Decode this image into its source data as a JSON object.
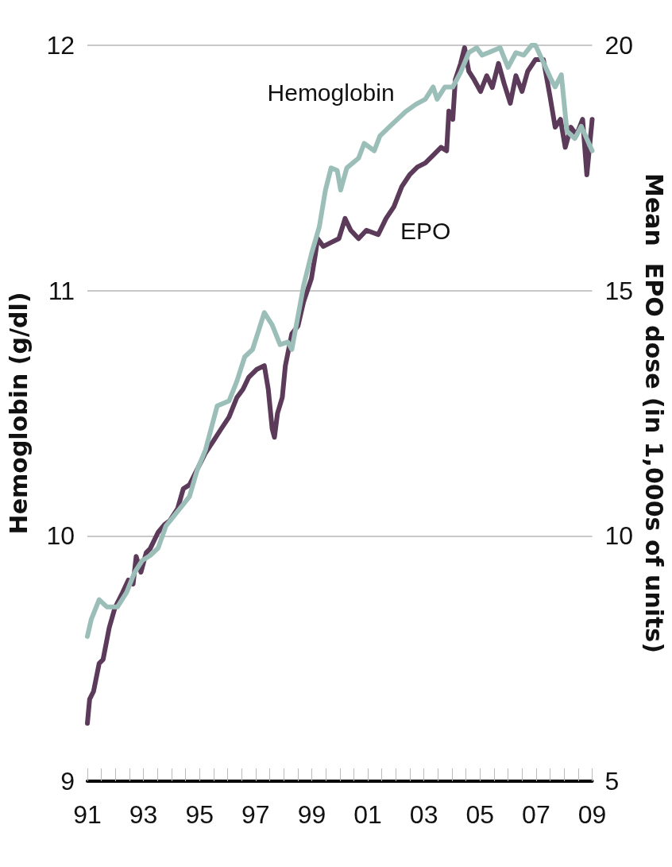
{
  "chart_data": {
    "type": "line",
    "ylabel": "Hemoglobin (g/dl)",
    "y2label": "Mean  EPO dose (in 1,000s of units)",
    "xlim": [
      1991,
      2009
    ],
    "xticks": [
      {
        "value": 1991,
        "label": "91"
      },
      {
        "value": 1991.5,
        "label": null
      },
      {
        "value": 1992,
        "label": null
      },
      {
        "value": 1992.5,
        "label": null
      },
      {
        "value": 1993,
        "label": "93"
      },
      {
        "value": 1993.5,
        "label": null
      },
      {
        "value": 1994,
        "label": null
      },
      {
        "value": 1994.5,
        "label": null
      },
      {
        "value": 1995,
        "label": "95"
      },
      {
        "value": 1995.5,
        "label": null
      },
      {
        "value": 1996,
        "label": null
      },
      {
        "value": 1996.5,
        "label": null
      },
      {
        "value": 1997,
        "label": "97"
      },
      {
        "value": 1997.5,
        "label": null
      },
      {
        "value": 1998,
        "label": null
      },
      {
        "value": 1998.5,
        "label": null
      },
      {
        "value": 1999,
        "label": "99"
      },
      {
        "value": 1999.5,
        "label": null
      },
      {
        "value": 2000,
        "label": null
      },
      {
        "value": 2000.5,
        "label": null
      },
      {
        "value": 2001,
        "label": "01"
      },
      {
        "value": 2001.5,
        "label": null
      },
      {
        "value": 2002,
        "label": null
      },
      {
        "value": 2002.5,
        "label": null
      },
      {
        "value": 2003,
        "label": "03"
      },
      {
        "value": 2003.5,
        "label": null
      },
      {
        "value": 2004,
        "label": null
      },
      {
        "value": 2004.5,
        "label": null
      },
      {
        "value": 2005,
        "label": "05"
      },
      {
        "value": 2005.5,
        "label": null
      },
      {
        "value": 2006,
        "label": null
      },
      {
        "value": 2006.5,
        "label": null
      },
      {
        "value": 2007,
        "label": "07"
      },
      {
        "value": 2007.5,
        "label": null
      },
      {
        "value": 2008,
        "label": null
      },
      {
        "value": 2008.5,
        "label": null
      },
      {
        "value": 2009,
        "label": "09"
      }
    ],
    "ylim": [
      9,
      12
    ],
    "yticks": [
      9,
      10,
      11,
      12
    ],
    "y2lim": [
      5,
      20
    ],
    "y2ticks": [
      5,
      10,
      15,
      20
    ],
    "grid": "y",
    "legend": false,
    "marker": "none",
    "line_style": "solid",
    "series": [
      {
        "name": "Hemoglobin",
        "color": "#9bbfb8",
        "x": [
          1991.0,
          1991.14,
          1991.42,
          1991.7,
          1992.07,
          1992.4,
          1992.68,
          1992.96,
          1993.24,
          1993.52,
          1993.8,
          1994.22,
          1994.64,
          1994.92,
          1995.21,
          1995.63,
          1996.05,
          1996.33,
          1996.61,
          1996.89,
          1997.31,
          1997.59,
          1997.87,
          1998.15,
          1998.29,
          1998.71,
          1998.99,
          1999.27,
          1999.49,
          1999.69,
          1999.91,
          2000.03,
          2000.25,
          2000.67,
          2000.87,
          2001.23,
          2001.43,
          2001.79,
          2002.07,
          2002.35,
          2002.72,
          2003.05,
          2003.33,
          2003.47,
          2003.75,
          2004.03,
          2004.31,
          2004.6,
          2004.88,
          2005.07,
          2005.3,
          2005.72,
          2006.0,
          2006.28,
          2006.56,
          2006.84,
          2006.98,
          2007.26,
          2007.54,
          2007.68,
          2007.9,
          2008.1,
          2008.38,
          2008.61,
          2009.0
        ],
        "values": [
          9.59,
          9.66,
          9.74,
          9.71,
          9.71,
          9.77,
          9.85,
          9.9,
          9.92,
          9.95,
          10.04,
          10.1,
          10.16,
          10.27,
          10.35,
          10.53,
          10.55,
          10.63,
          10.73,
          10.76,
          10.91,
          10.86,
          10.78,
          10.79,
          10.76,
          11.02,
          11.15,
          11.26,
          11.41,
          11.5,
          11.49,
          11.41,
          11.5,
          11.54,
          11.6,
          11.57,
          11.63,
          11.67,
          11.7,
          11.73,
          11.76,
          11.78,
          11.83,
          11.78,
          11.83,
          11.83,
          11.89,
          11.97,
          11.99,
          11.96,
          11.97,
          11.99,
          11.91,
          11.97,
          11.96,
          12.0,
          12.0,
          11.93,
          11.86,
          11.83,
          11.88,
          11.65,
          11.62,
          11.67,
          11.57
        ]
      },
      {
        "name": "EPO",
        "color": "#5c3a5a",
        "axis": "y2",
        "x": [
          1991.0,
          1991.08,
          1991.22,
          1991.42,
          1991.56,
          1991.78,
          1991.98,
          1992.26,
          1992.46,
          1992.63,
          1992.74,
          1992.91,
          1993.1,
          1993.24,
          1993.52,
          1993.75,
          1993.94,
          1994.22,
          1994.42,
          1994.64,
          1994.92,
          1995.21,
          1995.49,
          1995.77,
          1996.05,
          1996.33,
          1996.55,
          1996.75,
          1997.03,
          1997.31,
          1997.45,
          1997.59,
          1997.67,
          1997.78,
          1997.95,
          1998.06,
          1998.29,
          1998.51,
          1998.71,
          1998.99,
          1999.13,
          1999.21,
          1999.41,
          1999.69,
          1999.97,
          2000.19,
          2000.39,
          2000.67,
          2000.95,
          2001.37,
          2001.65,
          2001.93,
          2002.21,
          2002.49,
          2002.77,
          2003.05,
          2003.33,
          2003.61,
          2003.81,
          2003.89,
          2004.03,
          2004.12,
          2004.31,
          2004.45,
          2004.6,
          2004.79,
          2005.02,
          2005.24,
          2005.44,
          2005.66,
          2005.86,
          2006.08,
          2006.28,
          2006.5,
          2006.7,
          2006.98,
          2007.26,
          2007.49,
          2007.68,
          2007.87,
          2008.04,
          2008.24,
          2008.44,
          2008.66,
          2008.81,
          2009.0
        ],
        "values": [
          6.18,
          6.67,
          6.83,
          7.4,
          7.48,
          8.13,
          8.53,
          8.85,
          9.1,
          9.02,
          9.58,
          9.26,
          9.66,
          9.74,
          10.07,
          10.23,
          10.31,
          10.56,
          10.96,
          11.04,
          11.36,
          11.69,
          11.93,
          12.18,
          12.42,
          12.82,
          12.99,
          13.23,
          13.39,
          13.47,
          12.99,
          12.18,
          12.01,
          12.5,
          12.82,
          13.47,
          14.12,
          14.28,
          14.77,
          15.25,
          15.74,
          16.06,
          15.9,
          15.98,
          16.06,
          16.47,
          16.23,
          16.06,
          16.23,
          16.14,
          16.47,
          16.71,
          17.12,
          17.36,
          17.52,
          17.6,
          17.76,
          17.92,
          17.85,
          18.66,
          18.49,
          19.3,
          19.63,
          19.95,
          19.47,
          19.3,
          19.06,
          19.38,
          19.14,
          19.63,
          19.22,
          18.82,
          19.38,
          19.06,
          19.47,
          19.71,
          19.71,
          18.98,
          18.33,
          18.49,
          17.92,
          18.33,
          18.17,
          18.49,
          17.36,
          18.49
        ]
      }
    ]
  }
}
